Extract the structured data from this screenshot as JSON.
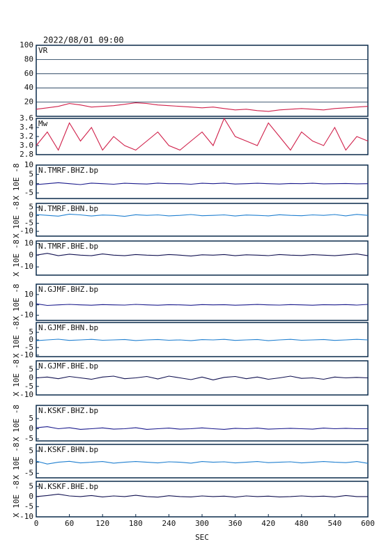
{
  "title": "2022/08/01 09:00",
  "chart_data": [
    {
      "type": "line",
      "title": "VR",
      "color": "#d0204a",
      "grid": true,
      "x": [
        0,
        20,
        40,
        60,
        80,
        100,
        120,
        140,
        160,
        180,
        200,
        220,
        240,
        260,
        280,
        300,
        320,
        340,
        360,
        380,
        400,
        420,
        440,
        460,
        480,
        500,
        520,
        540,
        560,
        580,
        600
      ],
      "values": [
        10,
        12,
        14,
        18,
        16,
        13,
        14,
        15,
        17,
        19,
        18,
        16,
        15,
        14,
        13,
        12,
        13,
        11,
        9,
        10,
        8,
        7,
        9,
        10,
        11,
        10,
        9,
        11,
        12,
        13,
        14
      ],
      "xlim": [
        0,
        600
      ],
      "ylim": [
        0,
        100
      ],
      "yticks": [
        20,
        40,
        60,
        80,
        100
      ]
    },
    {
      "type": "line",
      "title": "Mw",
      "color": "#d0204a",
      "grid": false,
      "x": [
        0,
        20,
        40,
        60,
        80,
        100,
        120,
        140,
        160,
        180,
        200,
        220,
        240,
        260,
        280,
        300,
        320,
        340,
        360,
        380,
        400,
        420,
        440,
        460,
        480,
        500,
        520,
        540,
        560,
        580,
        600
      ],
      "values": [
        3.0,
        3.3,
        2.9,
        3.5,
        3.1,
        3.4,
        2.9,
        3.2,
        3.0,
        2.9,
        3.1,
        3.3,
        3.0,
        2.9,
        3.1,
        3.3,
        3.0,
        3.6,
        3.2,
        3.1,
        3.0,
        3.5,
        3.2,
        2.9,
        3.3,
        3.1,
        3.0,
        3.4,
        2.9,
        3.2,
        3.1
      ],
      "xlim": [
        0,
        600
      ],
      "ylim": [
        2.8,
        3.6
      ],
      "yticks": [
        {
          "value": 2.8,
          "label": "2.8"
        },
        {
          "value": 3,
          "label": "3.0"
        },
        3.2,
        3.4,
        3.6
      ]
    },
    {
      "type": "line",
      "title": "N.TMRF.BHZ.bp",
      "ylabel": "X 10E -8",
      "color": "#1a1a8c",
      "grid": false,
      "x": [
        0,
        20,
        40,
        60,
        80,
        100,
        120,
        140,
        160,
        180,
        200,
        220,
        240,
        260,
        280,
        300,
        320,
        340,
        360,
        380,
        400,
        420,
        440,
        460,
        480,
        500,
        520,
        540,
        560,
        580,
        600
      ],
      "values": [
        -0.5,
        0,
        0.5,
        0,
        -0.5,
        0.3,
        0,
        -0.3,
        0.2,
        0,
        -0.2,
        0.3,
        0,
        0,
        -0.3,
        0.2,
        0,
        0.3,
        -0.2,
        0,
        0.2,
        0,
        -0.2,
        0.1,
        0,
        0.2,
        -0.1,
        0,
        0.1,
        -0.1,
        0
      ],
      "xlim": [
        0,
        600
      ],
      "ylim": [
        -8,
        10
      ],
      "yticks": [
        -5,
        0,
        5,
        10
      ]
    },
    {
      "type": "line",
      "title": "N.TMRF.BHN.bp",
      "ylabel": "X 10E -8",
      "color": "#1f7fd0",
      "grid": false,
      "x": [
        0,
        20,
        40,
        60,
        80,
        100,
        120,
        140,
        160,
        180,
        200,
        220,
        240,
        260,
        280,
        300,
        320,
        340,
        360,
        380,
        400,
        420,
        440,
        460,
        480,
        500,
        520,
        540,
        560,
        580,
        600
      ],
      "values": [
        0.5,
        0,
        -0.5,
        0.8,
        0.3,
        -0.4,
        0.2,
        0,
        -0.6,
        0.4,
        0,
        0.3,
        -0.3,
        0,
        0.5,
        -0.2,
        0,
        0.3,
        -0.4,
        0.2,
        0,
        -0.3,
        0.4,
        0,
        -0.2,
        0.3,
        0,
        0.5,
        -0.3,
        0.6,
        0
      ],
      "xlim": [
        0,
        600
      ],
      "ylim": [
        -13,
        7.5
      ],
      "yticks": [
        -10,
        -5,
        0,
        5
      ]
    },
    {
      "type": "line",
      "title": "N.TMRF.BHE.bp",
      "ylabel": "X 10E -8",
      "color": "#101050",
      "grid": false,
      "x": [
        0,
        20,
        40,
        60,
        80,
        100,
        120,
        140,
        160,
        180,
        200,
        220,
        240,
        260,
        280,
        300,
        320,
        340,
        360,
        380,
        400,
        420,
        440,
        460,
        480,
        500,
        520,
        540,
        560,
        580,
        600
      ],
      "values": [
        0,
        1.5,
        -0.5,
        0.8,
        0,
        -0.5,
        1,
        0,
        -0.5,
        0.5,
        0,
        -0.3,
        0.5,
        0,
        -0.8,
        0.3,
        0,
        0.5,
        -0.5,
        0.3,
        0,
        -0.4,
        0.5,
        0,
        -0.3,
        0.4,
        0,
        -0.5,
        0.3,
        1,
        -0.5
      ],
      "xlim": [
        0,
        600
      ],
      "ylim": [
        -17,
        12
      ],
      "yticks": [
        -10,
        0,
        10
      ]
    },
    {
      "type": "line",
      "title": "N.GJMF.BHZ.bp",
      "ylabel": "X 10E -8",
      "color": "#1a1a8c",
      "grid": false,
      "x": [
        0,
        20,
        40,
        60,
        80,
        100,
        120,
        140,
        160,
        180,
        200,
        220,
        240,
        260,
        280,
        300,
        320,
        340,
        360,
        380,
        400,
        420,
        440,
        460,
        480,
        500,
        520,
        540,
        560,
        580,
        600
      ],
      "values": [
        1,
        -0.5,
        0,
        0.5,
        0,
        -0.3,
        0.3,
        0,
        -0.2,
        0.5,
        0,
        -0.3,
        0.2,
        0,
        -0.4,
        0.3,
        0,
        0.2,
        -0.3,
        0,
        0.4,
        0,
        -0.2,
        0.3,
        0,
        -0.3,
        0.2,
        0,
        0.3,
        -0.2,
        0.5
      ],
      "xlim": [
        0,
        600
      ],
      "ylim": [
        -15,
        20
      ],
      "yticks": [
        -10,
        0,
        10
      ]
    },
    {
      "type": "line",
      "title": "N.GJMF.BHN.bp",
      "ylabel": "X 10E -8",
      "color": "#1f7fd0",
      "grid": false,
      "x": [
        0,
        20,
        40,
        60,
        80,
        100,
        120,
        140,
        160,
        180,
        200,
        220,
        240,
        260,
        280,
        300,
        320,
        340,
        360,
        380,
        400,
        420,
        440,
        460,
        480,
        500,
        520,
        540,
        560,
        580,
        600
      ],
      "values": [
        -0.5,
        0,
        0.5,
        -0.3,
        0,
        0.4,
        -0.2,
        0,
        0.3,
        -0.4,
        0,
        0.3,
        -0.2,
        0,
        -0.5,
        0.2,
        0,
        0.4,
        -0.3,
        0,
        0.3,
        -0.5,
        0,
        0.4,
        -0.2,
        0,
        0.3,
        -0.3,
        0,
        0.4,
        0
      ],
      "xlim": [
        0,
        600
      ],
      "ylim": [
        -11,
        11.5
      ],
      "yticks": [
        -10,
        -5,
        0,
        5
      ]
    },
    {
      "type": "line",
      "title": "N.GJMF.BHE.bp",
      "ylabel": "X 10E -8",
      "color": "#101050",
      "grid": false,
      "x": [
        0,
        20,
        40,
        60,
        80,
        100,
        120,
        140,
        160,
        180,
        200,
        220,
        240,
        260,
        280,
        300,
        320,
        340,
        360,
        380,
        400,
        420,
        440,
        460,
        480,
        500,
        520,
        540,
        560,
        580,
        600
      ],
      "values": [
        0,
        0.5,
        -0.5,
        0.8,
        0,
        -0.8,
        0.5,
        1,
        -0.5,
        0,
        0.8,
        -0.6,
        1,
        0,
        -1,
        0.5,
        -1.2,
        0.3,
        0.8,
        -0.5,
        0.5,
        -0.8,
        0,
        1,
        -0.3,
        0,
        -0.8,
        0.5,
        0,
        0.3,
        0
      ],
      "xlim": [
        0,
        600
      ],
      "ylim": [
        -10,
        10
      ],
      "yticks": [
        -10,
        -5,
        0,
        5
      ]
    },
    {
      "type": "line",
      "title": "N.KSKF.BHZ.bp",
      "ylabel": "X 10E -8",
      "color": "#1a1a8c",
      "grid": false,
      "x": [
        0,
        20,
        40,
        60,
        80,
        100,
        120,
        140,
        160,
        180,
        200,
        220,
        240,
        260,
        280,
        300,
        320,
        340,
        360,
        380,
        400,
        420,
        440,
        460,
        480,
        500,
        520,
        540,
        560,
        580,
        600
      ],
      "values": [
        0.5,
        1,
        0,
        0.5,
        -0.3,
        0,
        0.4,
        -0.2,
        0,
        0.5,
        -0.3,
        0,
        0.3,
        -0.2,
        0,
        0.4,
        0,
        -0.3,
        0.2,
        0,
        0.3,
        -0.2,
        0,
        0.2,
        0,
        -0.2,
        0.3,
        0,
        0.2,
        0,
        0
      ],
      "xlim": [
        0,
        600
      ],
      "ylim": [
        -6,
        11.5
      ],
      "yticks": [
        -5,
        0,
        5
      ]
    },
    {
      "type": "line",
      "title": "N.KSKF.BHN.bp",
      "ylabel": "X 10E -8",
      "color": "#1f7fd0",
      "grid": false,
      "x": [
        0,
        20,
        40,
        60,
        80,
        100,
        120,
        140,
        160,
        180,
        200,
        220,
        240,
        260,
        280,
        300,
        320,
        340,
        360,
        380,
        400,
        420,
        440,
        460,
        480,
        500,
        520,
        540,
        560,
        580,
        600
      ],
      "values": [
        0.5,
        -0.8,
        0,
        0.4,
        -0.3,
        0,
        0.3,
        -0.4,
        0,
        0.3,
        0,
        -0.3,
        0.2,
        0,
        -0.4,
        0.3,
        0,
        0.2,
        -0.3,
        0,
        0.3,
        -0.2,
        0,
        0.2,
        -0.3,
        0,
        0.3,
        0,
        -0.2,
        0.3,
        -0.5
      ],
      "xlim": [
        0,
        600
      ],
      "ylim": [
        -7,
        8
      ],
      "yticks": [
        -5,
        0,
        5
      ]
    },
    {
      "type": "line",
      "title": "N.KSKF.BHE.bp",
      "ylabel": "X 10E -8",
      "color": "#101050",
      "grid": false,
      "x": [
        0,
        20,
        40,
        60,
        80,
        100,
        120,
        140,
        160,
        180,
        200,
        220,
        240,
        260,
        280,
        300,
        320,
        340,
        360,
        380,
        400,
        420,
        440,
        460,
        480,
        500,
        520,
        540,
        560,
        580,
        600
      ],
      "values": [
        0,
        0.5,
        1.2,
        0.3,
        0,
        0.5,
        -0.2,
        0.3,
        0,
        0.6,
        0,
        -0.3,
        0.4,
        0,
        -0.2,
        0.3,
        0,
        0.2,
        -0.3,
        0.3,
        0,
        0.2,
        -0.2,
        0,
        0.3,
        0,
        0.2,
        -0.2,
        0.5,
        0,
        0
      ],
      "xlim": [
        0,
        600
      ],
      "ylim": [
        -10,
        7.5
      ],
      "yticks": [
        -10,
        -5,
        0,
        5
      ],
      "xticks": [
        0,
        60,
        120,
        180,
        240,
        300,
        360,
        420,
        480,
        540,
        600
      ],
      "xlabel": "SEC"
    }
  ]
}
